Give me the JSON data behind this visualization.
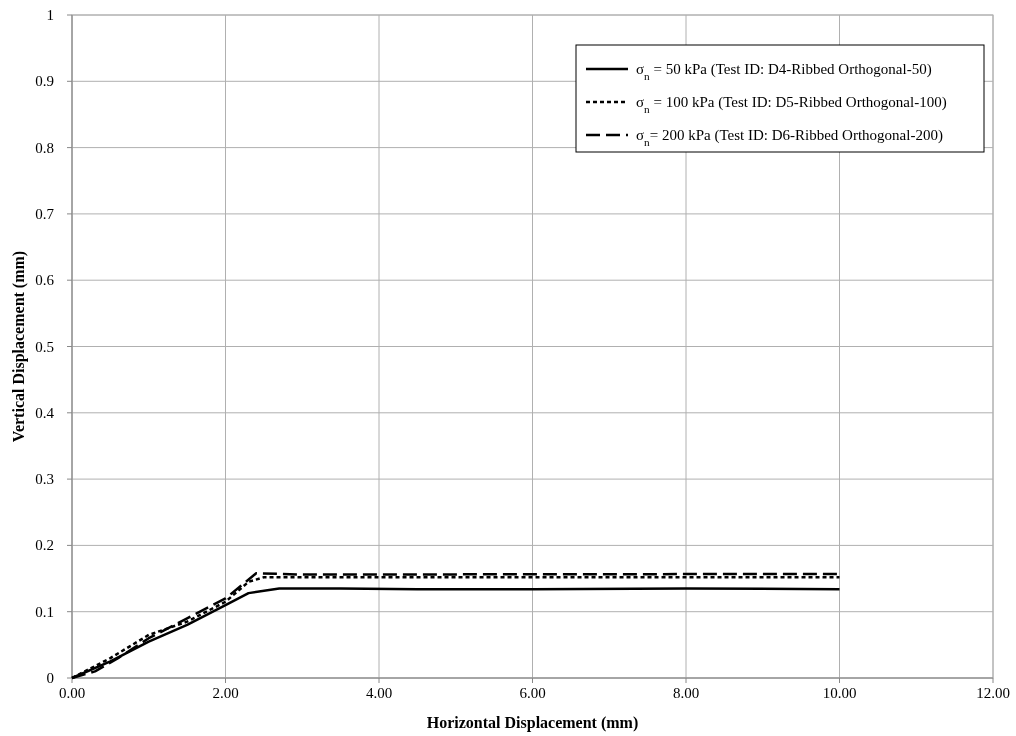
{
  "chart_data": {
    "type": "line",
    "xlabel": "Horizontal Displacement (mm)",
    "ylabel": "Vertical Displacement (mm)",
    "xlim": [
      0,
      12
    ],
    "ylim": [
      0,
      1
    ],
    "xticks": [
      {
        "value": 0,
        "label": "0.00"
      },
      {
        "value": 2,
        "label": "2.00"
      },
      {
        "value": 4,
        "label": "4.00"
      },
      {
        "value": 6,
        "label": "6.00"
      },
      {
        "value": 8,
        "label": "8.00"
      },
      {
        "value": 10,
        "label": "10.00"
      },
      {
        "value": 12,
        "label": "12.00"
      }
    ],
    "yticks": [
      0,
      0.1,
      0.2,
      0.3,
      0.4,
      0.5,
      0.6,
      0.7,
      0.8,
      0.9,
      1
    ],
    "grid": true,
    "legend": "top right",
    "marker": "none",
    "series": [
      {
        "name": "σ$_{n}$ = 50 kPa (Test ID: D4-Ribbed Orthogonal-50)",
        "color": "#000000",
        "line_style": "solid",
        "x": [
          0,
          0.5,
          1,
          1.5,
          2,
          2.3,
          2.7,
          3.5,
          4.5,
          6,
          8,
          10
        ],
        "values": [
          0,
          0.025,
          0.055,
          0.08,
          0.11,
          0.128,
          0.135,
          0.135,
          0.134,
          0.134,
          0.135,
          0.134
        ]
      },
      {
        "name": "σ$_{n}$ = 100 kPa (Test ID: D5-Ribbed Orthogonal-100)",
        "color": "#000000",
        "line_style": "dotted",
        "x": [
          0,
          0.5,
          1,
          1.5,
          2,
          2.3,
          2.5,
          3,
          10
        ],
        "values": [
          0,
          0.03,
          0.065,
          0.085,
          0.115,
          0.145,
          0.152,
          0.152,
          0.152
        ]
      },
      {
        "name": "σ$_{n}$= 200 kPa (Test ID: D6-Ribbed Orthogonal-200)",
        "color": "#000000",
        "line_style": "dashed",
        "x": [
          0,
          0.3,
          0.6,
          1,
          1.5,
          2,
          2.4,
          3,
          10
        ],
        "values": [
          0,
          0.01,
          0.03,
          0.06,
          0.09,
          0.12,
          0.158,
          0.156,
          0.157
        ]
      }
    ]
  }
}
